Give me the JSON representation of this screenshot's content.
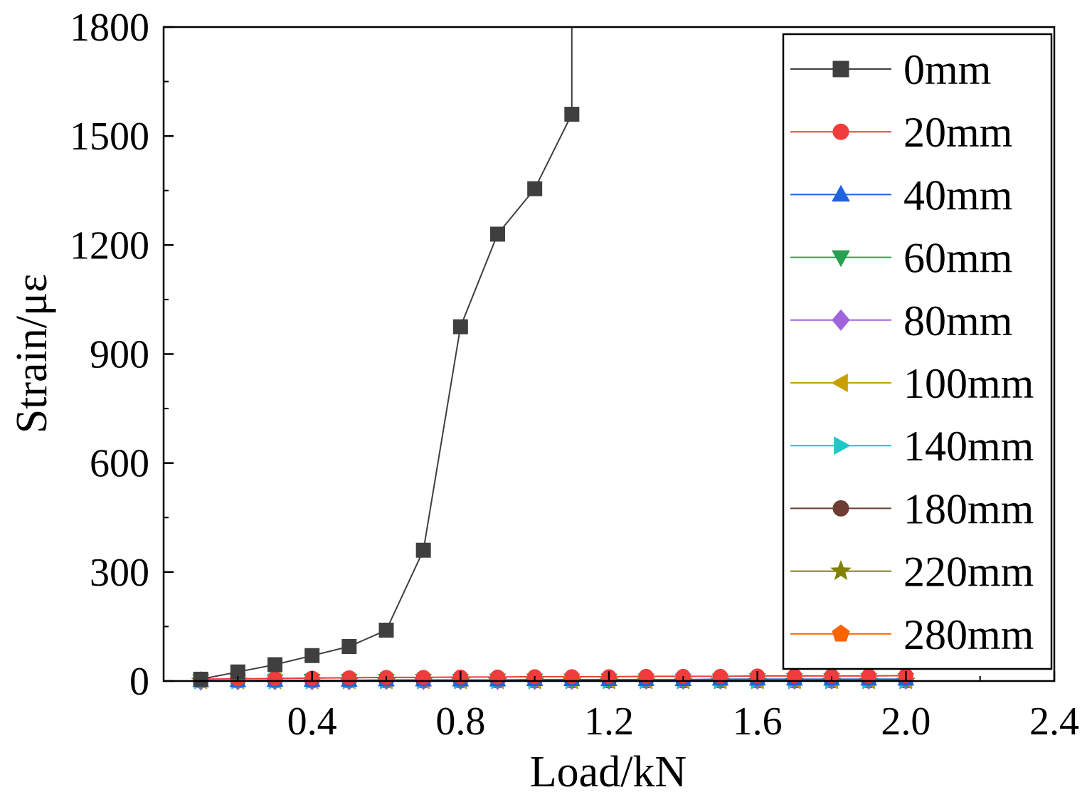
{
  "chart_data": {
    "type": "line",
    "xlabel": "Load/kN",
    "ylabel": "Strain/με",
    "xlim": [
      0.0,
      2.4
    ],
    "ylim": [
      0,
      1800
    ],
    "x_ticks": [
      0.4,
      0.8,
      1.2,
      1.6,
      2.0,
      2.4
    ],
    "x_tick_labels": [
      "0.4",
      "0.8",
      "1.2",
      "1.6",
      "2.0",
      "2.4"
    ],
    "y_ticks": [
      0,
      300,
      600,
      900,
      1200,
      1500,
      1800
    ],
    "y_tick_labels": [
      "0",
      "300",
      "600",
      "900",
      "1200",
      "1500",
      "1800"
    ],
    "grid": false,
    "legend_position": "top-right",
    "series": [
      {
        "name": "0mm",
        "color": "#3f3f3f",
        "marker": "square",
        "x": [
          0.1,
          0.2,
          0.3,
          0.4,
          0.5,
          0.6,
          0.7,
          0.8,
          0.9,
          1.0,
          1.1,
          1.1
        ],
        "y": [
          5,
          25,
          45,
          70,
          95,
          140,
          360,
          975,
          1230,
          1355,
          1560,
          1800
        ],
        "marker_count": 11
      },
      {
        "name": "20mm",
        "color": "#f03c3c",
        "marker": "circle",
        "x": [
          0.1,
          0.2,
          0.3,
          0.4,
          0.5,
          0.6,
          0.7,
          0.8,
          0.9,
          1.0,
          1.1,
          1.2,
          1.3,
          1.4,
          1.5,
          1.6,
          1.7,
          1.8,
          1.9,
          2.0
        ],
        "y": [
          5,
          6,
          7,
          8,
          9,
          10,
          10,
          11,
          11,
          12,
          12,
          12,
          13,
          13,
          13,
          14,
          14,
          14,
          14,
          15
        ]
      },
      {
        "name": "40mm",
        "color": "#1e64dc",
        "marker": "triangle-up",
        "x": [
          0.1,
          0.2,
          0.3,
          0.4,
          0.5,
          0.6,
          0.7,
          0.8,
          0.9,
          1.0,
          1.1,
          1.2,
          1.3,
          1.4,
          1.5,
          1.6,
          1.7,
          1.8,
          1.9,
          2.0
        ],
        "y": [
          1,
          1,
          2,
          2,
          2,
          3,
          3,
          3,
          3,
          4,
          4,
          4,
          4,
          4,
          5,
          5,
          5,
          5,
          5,
          5
        ]
      },
      {
        "name": "60mm",
        "color": "#28a050",
        "marker": "triangle-down",
        "x": [
          0.1,
          0.2,
          0.3,
          0.4,
          0.5,
          0.6,
          0.7,
          0.8,
          0.9,
          1.0,
          1.1,
          1.2,
          1.3,
          1.4,
          1.5,
          1.6,
          1.7,
          1.8,
          1.9,
          2.0
        ],
        "y": [
          1,
          1,
          1,
          2,
          2,
          2,
          2,
          2,
          3,
          3,
          3,
          3,
          3,
          3,
          3,
          4,
          4,
          4,
          4,
          4
        ]
      },
      {
        "name": "80mm",
        "color": "#a064dc",
        "marker": "diamond",
        "x": [
          0.1,
          0.2,
          0.3,
          0.4,
          0.5,
          0.6,
          0.7,
          0.8,
          0.9,
          1.0,
          1.1,
          1.2,
          1.3,
          1.4,
          1.5,
          1.6,
          1.7,
          1.8,
          1.9,
          2.0
        ],
        "y": [
          0,
          1,
          1,
          1,
          1,
          2,
          2,
          2,
          2,
          2,
          2,
          3,
          3,
          3,
          3,
          3,
          3,
          3,
          3,
          3
        ]
      },
      {
        "name": "100mm",
        "color": "#c8a000",
        "marker": "triangle-left",
        "x": [
          0.1,
          0.2,
          0.3,
          0.4,
          0.5,
          0.6,
          0.7,
          0.8,
          0.9,
          1.0,
          1.1,
          1.2,
          1.3,
          1.4,
          1.5,
          1.6,
          1.7,
          1.8,
          1.9,
          2.0
        ],
        "y": [
          0,
          0,
          1,
          1,
          1,
          1,
          1,
          1,
          2,
          2,
          2,
          2,
          2,
          2,
          2,
          2,
          2,
          2,
          2,
          2
        ]
      },
      {
        "name": "140mm",
        "color": "#1ec8c8",
        "marker": "triangle-right",
        "x": [
          0.1,
          0.2,
          0.3,
          0.4,
          0.5,
          0.6,
          0.7,
          0.8,
          0.9,
          1.0,
          1.1,
          1.2,
          1.3,
          1.4,
          1.5,
          1.6,
          1.7,
          1.8,
          1.9,
          2.0
        ],
        "y": [
          0,
          0,
          0,
          0,
          1,
          1,
          1,
          1,
          1,
          1,
          1,
          1,
          1,
          1,
          1,
          1,
          1,
          1,
          1,
          1
        ]
      },
      {
        "name": "180mm",
        "color": "#6e3c32",
        "marker": "circle",
        "x": [
          0.1,
          0.2,
          0.3,
          0.4,
          0.5,
          0.6,
          0.7,
          0.8,
          0.9,
          1.0,
          1.1,
          1.2,
          1.3,
          1.4,
          1.5,
          1.6,
          1.7,
          1.8,
          1.9,
          2.0
        ],
        "y": [
          0,
          0,
          0,
          0,
          0,
          0,
          0,
          0,
          0,
          0,
          0,
          0,
          0,
          0,
          0,
          0,
          0,
          0,
          0,
          0
        ]
      },
      {
        "name": "220mm",
        "color": "#828200",
        "marker": "star",
        "x": [
          0.1,
          0.2,
          0.3,
          0.4,
          0.5,
          0.6,
          0.7,
          0.8,
          0.9,
          1.0,
          1.1,
          1.2,
          1.3,
          1.4,
          1.5,
          1.6,
          1.7,
          1.8,
          1.9,
          2.0
        ],
        "y": [
          0,
          0,
          0,
          0,
          0,
          0,
          0,
          0,
          0,
          0,
          0,
          0,
          0,
          0,
          0,
          0,
          0,
          0,
          0,
          0
        ]
      },
      {
        "name": "280mm",
        "color": "#fa6400",
        "marker": "pentagon",
        "x": [
          0.1,
          0.2,
          0.3,
          0.4,
          0.5,
          0.6,
          0.7,
          0.8,
          0.9,
          1.0,
          1.1,
          1.2,
          1.3,
          1.4,
          1.5,
          1.6,
          1.7,
          1.8,
          1.9,
          2.0
        ],
        "y": [
          0,
          0,
          0,
          0,
          0,
          0,
          0,
          0,
          0,
          0,
          0,
          0,
          0,
          0,
          0,
          0,
          0,
          0,
          0,
          0
        ]
      }
    ]
  }
}
